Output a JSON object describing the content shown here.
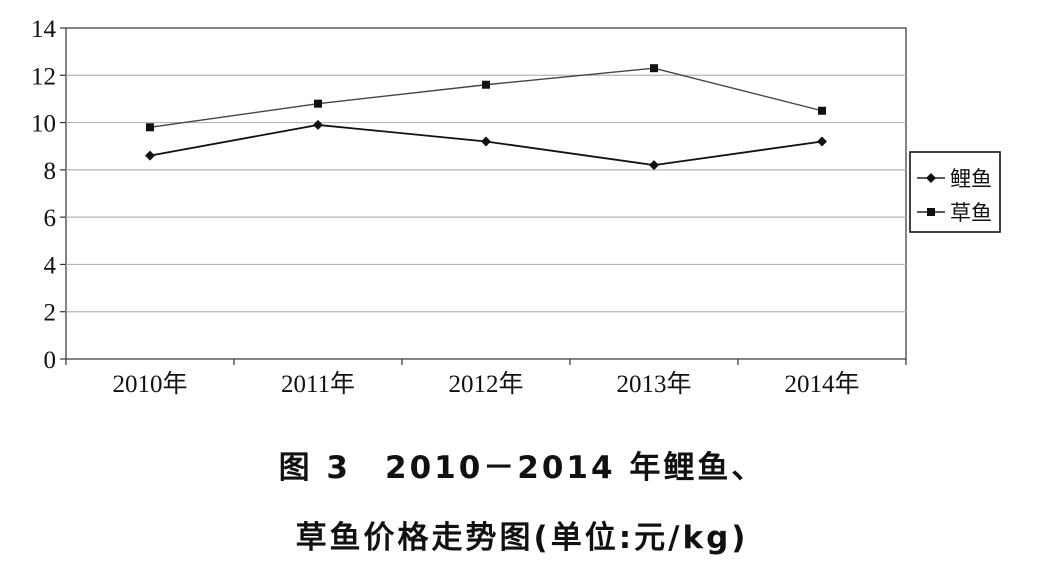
{
  "chart_data": {
    "type": "line",
    "categories": [
      "2010年",
      "2011年",
      "2012年",
      "2013年",
      "2014年"
    ],
    "series": [
      {
        "name": "鲤鱼",
        "marker": "diamond",
        "values": [
          8.6,
          9.9,
          9.2,
          8.2,
          9.2
        ]
      },
      {
        "name": "草鱼",
        "marker": "square",
        "values": [
          9.8,
          10.8,
          11.6,
          12.3,
          10.5
        ]
      }
    ],
    "ylim": [
      0,
      14
    ],
    "yticks": [
      "0",
      "2",
      "4",
      "6",
      "8",
      "10",
      "12",
      "14"
    ],
    "grid": true,
    "legend_position": "right",
    "line_color": "#222222"
  },
  "caption": {
    "line1": "图 3　2010－2014 年鲤鱼、",
    "line2": "草鱼价格走势图(单位:元/kg)"
  }
}
